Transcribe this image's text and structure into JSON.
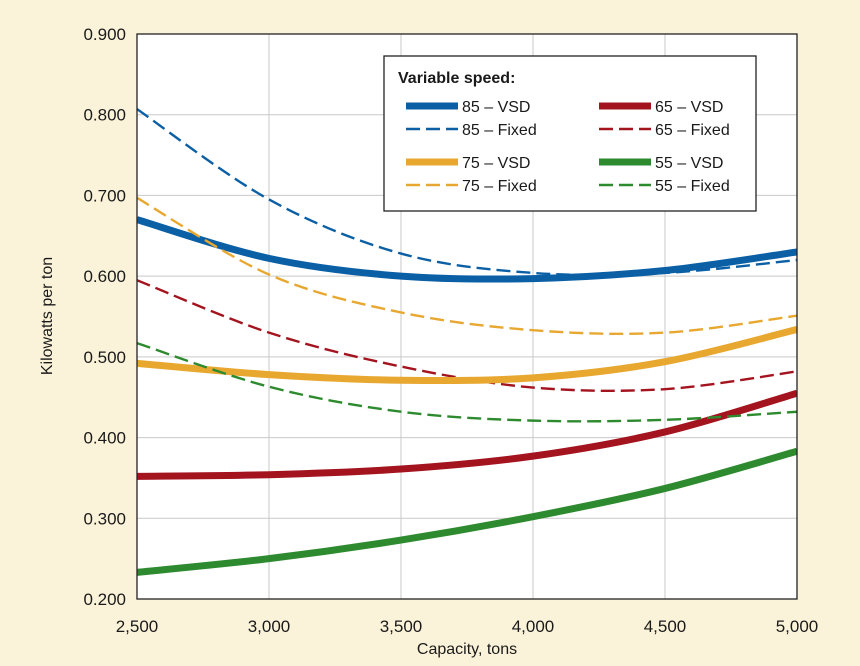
{
  "chart_data": {
    "type": "line",
    "xlabel": "Capacity, tons",
    "ylabel": "Kilowatts per ton",
    "xlim": [
      2500,
      5000
    ],
    "ylim": [
      0.2,
      0.9
    ],
    "x_ticks": [
      "2,500",
      "3,000",
      "3,500",
      "4,000",
      "4,500",
      "5,000"
    ],
    "y_ticks": [
      "0.200",
      "0.300",
      "0.400",
      "0.500",
      "0.600",
      "0.700",
      "0.800",
      "0.900"
    ],
    "grid": true,
    "legend_position": "top-right",
    "legend_title": "Variable speed:",
    "x": [
      2500,
      3000,
      3500,
      4000,
      4500,
      5000
    ],
    "series": [
      {
        "name": "85 – VSD",
        "color": "#0b5fa5",
        "style": "solid",
        "values": [
          0.67,
          0.622,
          0.6,
          0.597,
          0.607,
          0.63
        ]
      },
      {
        "name": "85 – Fixed",
        "color": "#0b5fa5",
        "style": "dashed",
        "values": [
          0.807,
          0.695,
          0.628,
          0.604,
          0.604,
          0.62
        ]
      },
      {
        "name": "65 – VSD",
        "color": "#a3141f",
        "style": "solid",
        "values": [
          0.352,
          0.354,
          0.361,
          0.377,
          0.407,
          0.455
        ]
      },
      {
        "name": "65 – Fixed",
        "color": "#a3141f",
        "style": "dashed",
        "values": [
          0.595,
          0.53,
          0.488,
          0.462,
          0.46,
          0.482
        ]
      },
      {
        "name": "75 – VSD",
        "color": "#e8a830",
        "style": "solid",
        "values": [
          0.492,
          0.478,
          0.471,
          0.474,
          0.494,
          0.534
        ]
      },
      {
        "name": "75 – Fixed",
        "color": "#e8a830",
        "style": "dashed",
        "values": [
          0.697,
          0.602,
          0.555,
          0.533,
          0.53,
          0.551
        ]
      },
      {
        "name": "55 – VSD",
        "color": "#2e8a2e",
        "style": "solid",
        "values": [
          0.233,
          0.25,
          0.273,
          0.302,
          0.337,
          0.383
        ]
      },
      {
        "name": "55 – Fixed",
        "color": "#2e8a2e",
        "style": "dashed",
        "values": [
          0.517,
          0.463,
          0.432,
          0.421,
          0.422,
          0.432
        ]
      }
    ]
  }
}
